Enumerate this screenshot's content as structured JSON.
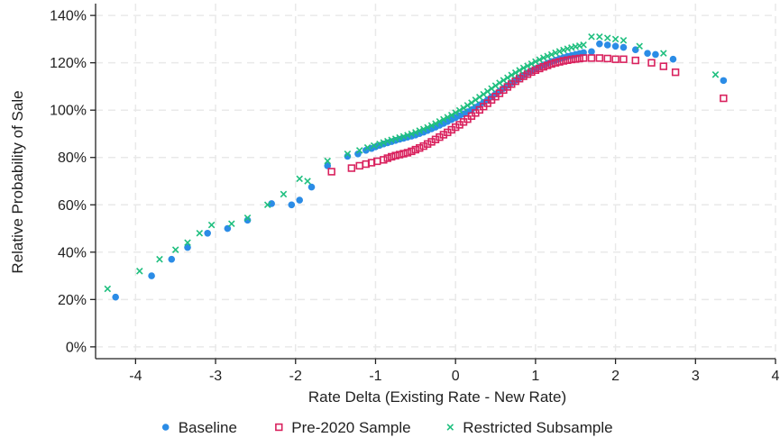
{
  "chart_data": {
    "type": "scatter",
    "xlabel": "Rate Delta (Existing Rate - New Rate)",
    "ylabel": "Relative Probability of Sale",
    "xlim": [
      -4.5,
      4.0
    ],
    "ylim": [
      -0.05,
      1.45
    ],
    "x_ticks": [
      -4,
      -3,
      -2,
      -1,
      0,
      1,
      2,
      3,
      4
    ],
    "x_tick_labels": [
      "-4",
      "-3",
      "-2",
      "-1",
      "0",
      "1",
      "2",
      "3",
      "4"
    ],
    "y_ticks": [
      0,
      0.2,
      0.4,
      0.6,
      0.8,
      1.0,
      1.2,
      1.4
    ],
    "y_tick_labels": [
      "0%",
      "20%",
      "40%",
      "60%",
      "80%",
      "100%",
      "120%",
      "140%"
    ],
    "grid": true,
    "legend_position": "bottom",
    "series": [
      {
        "name": "Baseline",
        "marker": "circle",
        "color": "#2b8ce6",
        "x": [
          -4.25,
          -3.8,
          -3.55,
          -3.35,
          -3.1,
          -2.85,
          -2.6,
          -2.3,
          -2.05,
          -1.95,
          -1.8,
          -1.6,
          -1.35,
          -1.22,
          -1.12,
          -1.05,
          -1.0,
          -0.95,
          -0.9,
          -0.85,
          -0.8,
          -0.75,
          -0.7,
          -0.65,
          -0.6,
          -0.55,
          -0.5,
          -0.45,
          -0.4,
          -0.35,
          -0.3,
          -0.25,
          -0.2,
          -0.15,
          -0.1,
          -0.05,
          0.0,
          0.05,
          0.1,
          0.15,
          0.2,
          0.25,
          0.3,
          0.35,
          0.4,
          0.45,
          0.5,
          0.55,
          0.6,
          0.65,
          0.7,
          0.75,
          0.8,
          0.85,
          0.9,
          0.95,
          1.0,
          1.05,
          1.1,
          1.15,
          1.2,
          1.25,
          1.3,
          1.35,
          1.4,
          1.45,
          1.5,
          1.55,
          1.6,
          1.7,
          1.8,
          1.9,
          2.0,
          2.1,
          2.25,
          2.4,
          2.5,
          2.72,
          3.35
        ],
        "y": [
          0.21,
          0.3,
          0.37,
          0.42,
          0.48,
          0.5,
          0.535,
          0.605,
          0.6,
          0.62,
          0.675,
          0.765,
          0.805,
          0.815,
          0.83,
          0.838,
          0.845,
          0.851,
          0.857,
          0.862,
          0.867,
          0.872,
          0.877,
          0.881,
          0.886,
          0.89,
          0.895,
          0.901,
          0.907,
          0.914,
          0.921,
          0.928,
          0.936,
          0.944,
          0.952,
          0.96,
          0.968,
          0.976,
          0.984,
          0.993,
          1.002,
          1.012,
          1.022,
          1.033,
          1.044,
          1.056,
          1.068,
          1.08,
          1.092,
          1.104,
          1.115,
          1.126,
          1.137,
          1.147,
          1.157,
          1.166,
          1.175,
          1.183,
          1.191,
          1.198,
          1.205,
          1.211,
          1.217,
          1.222,
          1.227,
          1.231,
          1.235,
          1.239,
          1.243,
          1.247,
          1.28,
          1.275,
          1.27,
          1.265,
          1.255,
          1.24,
          1.235,
          1.215,
          1.125
        ]
      },
      {
        "name": "Pre-2020 Sample",
        "marker": "square",
        "color": "#d9225e",
        "x": [
          -1.55,
          -1.3,
          -1.2,
          -1.12,
          -1.05,
          -0.98,
          -0.9,
          -0.85,
          -0.8,
          -0.75,
          -0.7,
          -0.65,
          -0.6,
          -0.55,
          -0.5,
          -0.45,
          -0.4,
          -0.35,
          -0.3,
          -0.25,
          -0.2,
          -0.15,
          -0.1,
          -0.05,
          0.0,
          0.05,
          0.1,
          0.15,
          0.2,
          0.25,
          0.3,
          0.35,
          0.4,
          0.45,
          0.5,
          0.55,
          0.6,
          0.65,
          0.7,
          0.75,
          0.8,
          0.85,
          0.9,
          0.95,
          1.0,
          1.05,
          1.1,
          1.15,
          1.2,
          1.25,
          1.3,
          1.35,
          1.4,
          1.45,
          1.5,
          1.55,
          1.6,
          1.7,
          1.8,
          1.9,
          2.0,
          2.1,
          2.25,
          2.45,
          2.6,
          2.75,
          3.35
        ],
        "y": [
          0.74,
          0.755,
          0.765,
          0.772,
          0.778,
          0.784,
          0.79,
          0.797,
          0.803,
          0.808,
          0.812,
          0.816,
          0.82,
          0.826,
          0.833,
          0.84,
          0.848,
          0.857,
          0.866,
          0.876,
          0.886,
          0.896,
          0.906,
          0.917,
          0.928,
          0.938,
          0.95,
          0.962,
          0.975,
          0.988,
          1.001,
          1.015,
          1.029,
          1.043,
          1.057,
          1.071,
          1.085,
          1.098,
          1.11,
          1.122,
          1.133,
          1.143,
          1.152,
          1.161,
          1.169,
          1.176,
          1.183,
          1.189,
          1.195,
          1.2,
          1.204,
          1.208,
          1.211,
          1.214,
          1.216,
          1.218,
          1.22,
          1.22,
          1.22,
          1.218,
          1.215,
          1.215,
          1.21,
          1.2,
          1.185,
          1.16,
          1.05
        ]
      },
      {
        "name": "Restricted Subsample",
        "marker": "x",
        "color": "#1fbf7f",
        "x": [
          -4.35,
          -3.95,
          -3.7,
          -3.5,
          -3.35,
          -3.2,
          -3.05,
          -2.8,
          -2.6,
          -2.35,
          -2.15,
          -1.95,
          -1.85,
          -1.6,
          -1.35,
          -1.2,
          -1.1,
          -1.02,
          -0.95,
          -0.9,
          -0.85,
          -0.8,
          -0.75,
          -0.7,
          -0.65,
          -0.6,
          -0.55,
          -0.5,
          -0.45,
          -0.4,
          -0.35,
          -0.3,
          -0.25,
          -0.2,
          -0.15,
          -0.1,
          -0.05,
          0.0,
          0.05,
          0.1,
          0.15,
          0.2,
          0.25,
          0.3,
          0.35,
          0.4,
          0.45,
          0.5,
          0.55,
          0.6,
          0.65,
          0.7,
          0.75,
          0.8,
          0.85,
          0.9,
          0.95,
          1.0,
          1.05,
          1.1,
          1.15,
          1.2,
          1.25,
          1.3,
          1.35,
          1.4,
          1.45,
          1.5,
          1.55,
          1.6,
          1.7,
          1.8,
          1.9,
          2.0,
          2.1,
          2.3,
          2.6,
          3.25
        ],
        "y": [
          0.245,
          0.32,
          0.37,
          0.41,
          0.44,
          0.48,
          0.515,
          0.52,
          0.545,
          0.6,
          0.645,
          0.71,
          0.7,
          0.785,
          0.815,
          0.83,
          0.842,
          0.85,
          0.857,
          0.863,
          0.869,
          0.874,
          0.879,
          0.884,
          0.889,
          0.894,
          0.9,
          0.906,
          0.913,
          0.92,
          0.927,
          0.935,
          0.943,
          0.952,
          0.961,
          0.97,
          0.979,
          0.989,
          0.999,
          1.009,
          1.02,
          1.031,
          1.043,
          1.055,
          1.067,
          1.079,
          1.091,
          1.103,
          1.115,
          1.126,
          1.137,
          1.148,
          1.158,
          1.168,
          1.178,
          1.187,
          1.196,
          1.205,
          1.213,
          1.221,
          1.228,
          1.235,
          1.242,
          1.248,
          1.254,
          1.259,
          1.264,
          1.268,
          1.272,
          1.276,
          1.31,
          1.31,
          1.305,
          1.3,
          1.295,
          1.27,
          1.24,
          1.15
        ]
      }
    ]
  }
}
